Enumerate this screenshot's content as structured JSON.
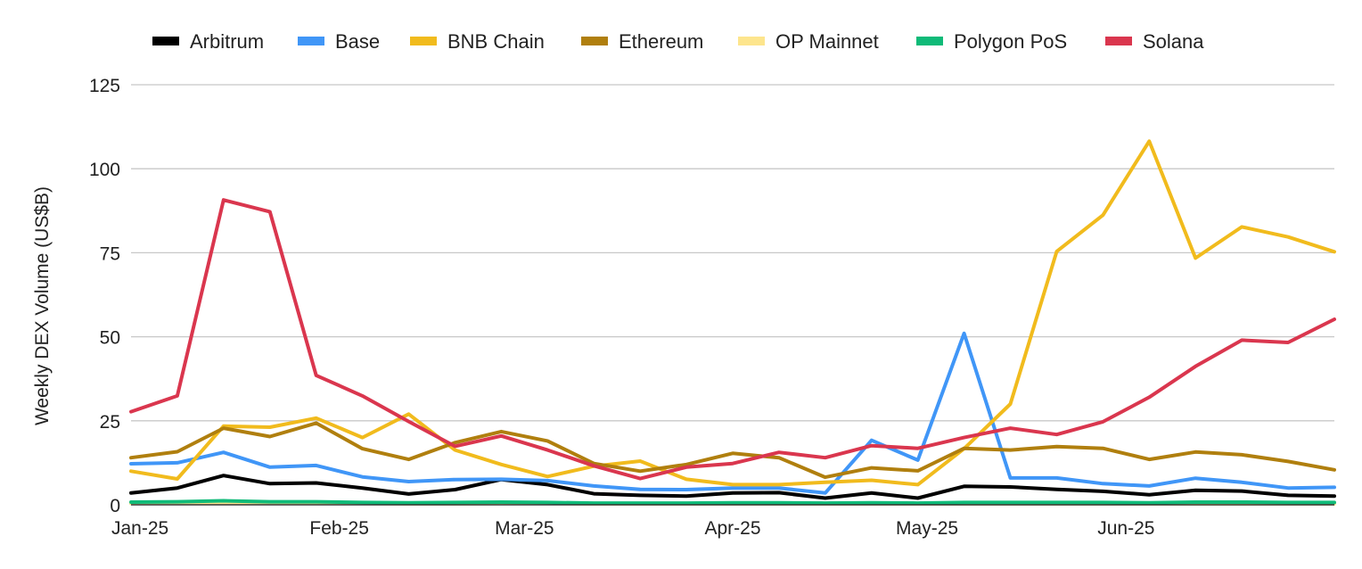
{
  "chart_data": {
    "type": "line",
    "ylabel": "Weekly DEX Volume (US$B)",
    "ylim": [
      0,
      125
    ],
    "yticks": [
      0,
      25,
      50,
      75,
      100,
      125
    ],
    "grid": true,
    "legend_position": "top",
    "x_tick_labels": [
      {
        "label": "Jan-25",
        "index": 0
      },
      {
        "label": "Feb-25",
        "index": 4.5
      },
      {
        "label": "Mar-25",
        "index": 8.5
      },
      {
        "label": "Apr-25",
        "index": 13
      },
      {
        "label": "May-25",
        "index": 17.2
      },
      {
        "label": "Jun-25",
        "index": 21.5
      }
    ],
    "x_count": 27,
    "series": [
      {
        "name": "Arbitrum",
        "color": "#000000",
        "values": [
          3.5,
          5,
          8.7,
          6.3,
          6.5,
          5,
          3.2,
          4.5,
          7.5,
          6,
          3.3,
          2.8,
          2.6,
          3.5,
          3.6,
          2,
          3.5,
          2,
          5.5,
          5.3,
          4.6,
          4,
          3,
          4.3,
          4.1,
          2.8,
          2.6
        ]
      },
      {
        "name": "Base",
        "color": "#4096f7",
        "values": [
          12.2,
          12.5,
          15.6,
          11.2,
          11.7,
          8.3,
          6.9,
          7.5,
          7.6,
          7.2,
          5.6,
          4.6,
          4.5,
          5,
          5,
          3.5,
          19.2,
          13.3,
          51,
          8,
          8,
          6.3,
          5.6,
          7.9,
          6.7,
          5,
          5.2
        ]
      },
      {
        "name": "BNB Chain",
        "color": "#f1bb1d",
        "values": [
          10,
          7.7,
          23.4,
          23.1,
          25.8,
          20,
          27,
          16.3,
          12,
          8.4,
          11.5,
          13,
          7.6,
          6,
          6,
          6.7,
          7.3,
          6,
          16.7,
          30,
          75.4,
          86.2,
          108.2,
          73.4,
          82.7,
          79.7,
          75.3
        ]
      },
      {
        "name": "Ethereum",
        "color": "#b07f0e",
        "values": [
          14,
          15.8,
          22.8,
          20.3,
          24.3,
          16.7,
          13.5,
          18.5,
          21.8,
          19,
          12.3,
          10,
          12,
          15.3,
          14,
          8.2,
          11,
          10.1,
          16.8,
          16.3,
          17.3,
          16.8,
          13.5,
          15.7,
          14.9,
          12.9,
          10.4
        ]
      },
      {
        "name": "OP Mainnet",
        "color": "#fde58d",
        "values": [
          0.4,
          0.4,
          0.5,
          0.4,
          0.4,
          0.4,
          0.3,
          0.3,
          0.4,
          0.4,
          0.3,
          0.3,
          0.3,
          0.3,
          0.3,
          0.3,
          0.3,
          0.3,
          0.3,
          0.3,
          0.3,
          0.3,
          0.3,
          0.3,
          0.3,
          0.3,
          0.3
        ]
      },
      {
        "name": "Polygon PoS",
        "color": "#0fba78",
        "values": [
          0.8,
          0.9,
          1.2,
          0.9,
          0.9,
          0.7,
          0.6,
          0.7,
          0.8,
          0.7,
          0.5,
          0.5,
          0.5,
          0.6,
          0.6,
          0.5,
          0.6,
          0.5,
          0.7,
          0.7,
          0.7,
          0.7,
          0.6,
          0.8,
          0.8,
          0.7,
          0.7
        ]
      },
      {
        "name": "Solana",
        "color": "#da364e",
        "values": [
          27.7,
          32.4,
          90.7,
          87.2,
          38.5,
          32.4,
          24.8,
          17.4,
          20.5,
          16.3,
          11.6,
          7.8,
          11.2,
          12.3,
          15.6,
          14,
          17.6,
          16.8,
          20,
          22.8,
          20.9,
          24.7,
          32,
          41.2,
          49,
          48.3,
          55.2
        ]
      }
    ]
  }
}
